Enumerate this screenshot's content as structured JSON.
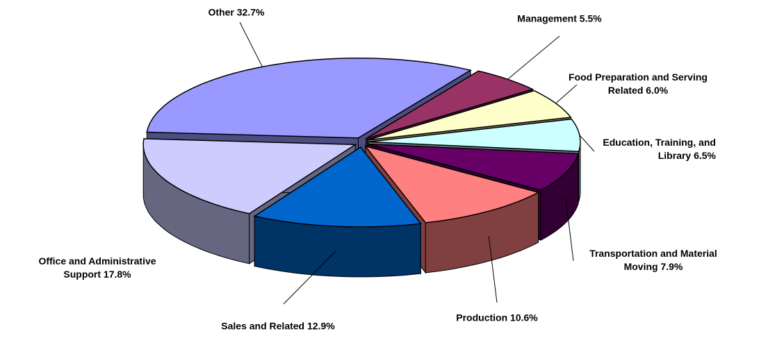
{
  "chart_data": {
    "type": "pie",
    "categories": [
      "Management",
      "Food Preparation and Serving Related",
      "Education, Training, and Library",
      "Transportation and Material Moving",
      "Production",
      "Sales and Related",
      "Office and Administrative Support",
      "Other"
    ],
    "values": [
      5.5,
      6.0,
      6.5,
      7.9,
      10.6,
      12.9,
      17.8,
      32.7
    ],
    "value_labels": [
      "5.5%",
      "6.0%",
      "6.5%",
      "7.9%",
      "10.6%",
      "12.9%",
      "17.8%",
      "32.7%"
    ],
    "colors": [
      "#993366",
      "#FFFFCC",
      "#CCFFFF",
      "#660066",
      "#FF8080",
      "#0066CC",
      "#CCCCFF",
      "#9999FF"
    ]
  }
}
